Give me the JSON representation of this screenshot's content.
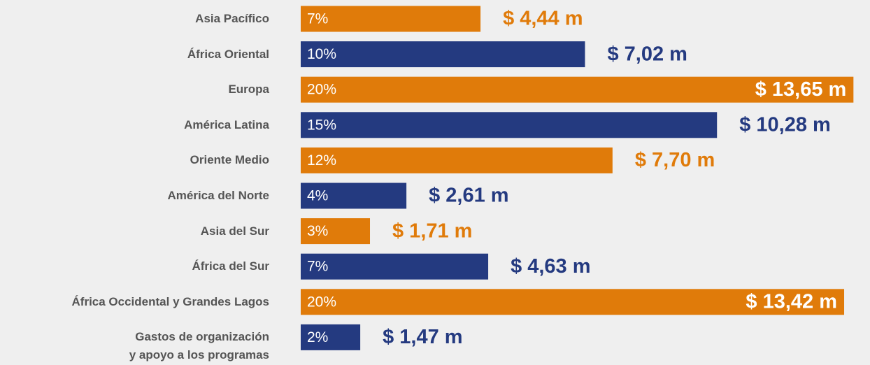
{
  "chart_data": {
    "type": "bar",
    "categories": [
      "Asia Pacífico",
      "África Oriental",
      "Europa",
      "América Latina",
      "Oriente Medio",
      "América del Norte",
      "Asia del Sur",
      "África del Sur",
      "África Occidental y Grandes Lagos",
      "Gastos de organización\ny apoyo a los programas"
    ],
    "values": [
      4.44,
      7.02,
      13.65,
      10.28,
      7.7,
      2.61,
      1.71,
      4.63,
      13.42,
      1.47
    ],
    "value_labels": [
      "$ 4,44 m",
      "$ 7,02 m",
      "$ 13,65 m",
      "$ 10,28 m",
      "$ 7,70 m",
      "$ 2,61 m",
      "$ 1,71 m",
      "$ 4,63 m",
      "$ 13,42 m",
      "$ 1,47 m"
    ],
    "share_labels": [
      "7%",
      "10%",
      "20%",
      "15%",
      "12%",
      "4%",
      "3%",
      "7%",
      "20%",
      "2%"
    ],
    "colors": [
      "#e07b0a",
      "#243a80",
      "#e07b0a",
      "#243a80",
      "#e07b0a",
      "#243a80",
      "#e07b0a",
      "#243a80",
      "#e07b0a",
      "#243a80"
    ]
  }
}
